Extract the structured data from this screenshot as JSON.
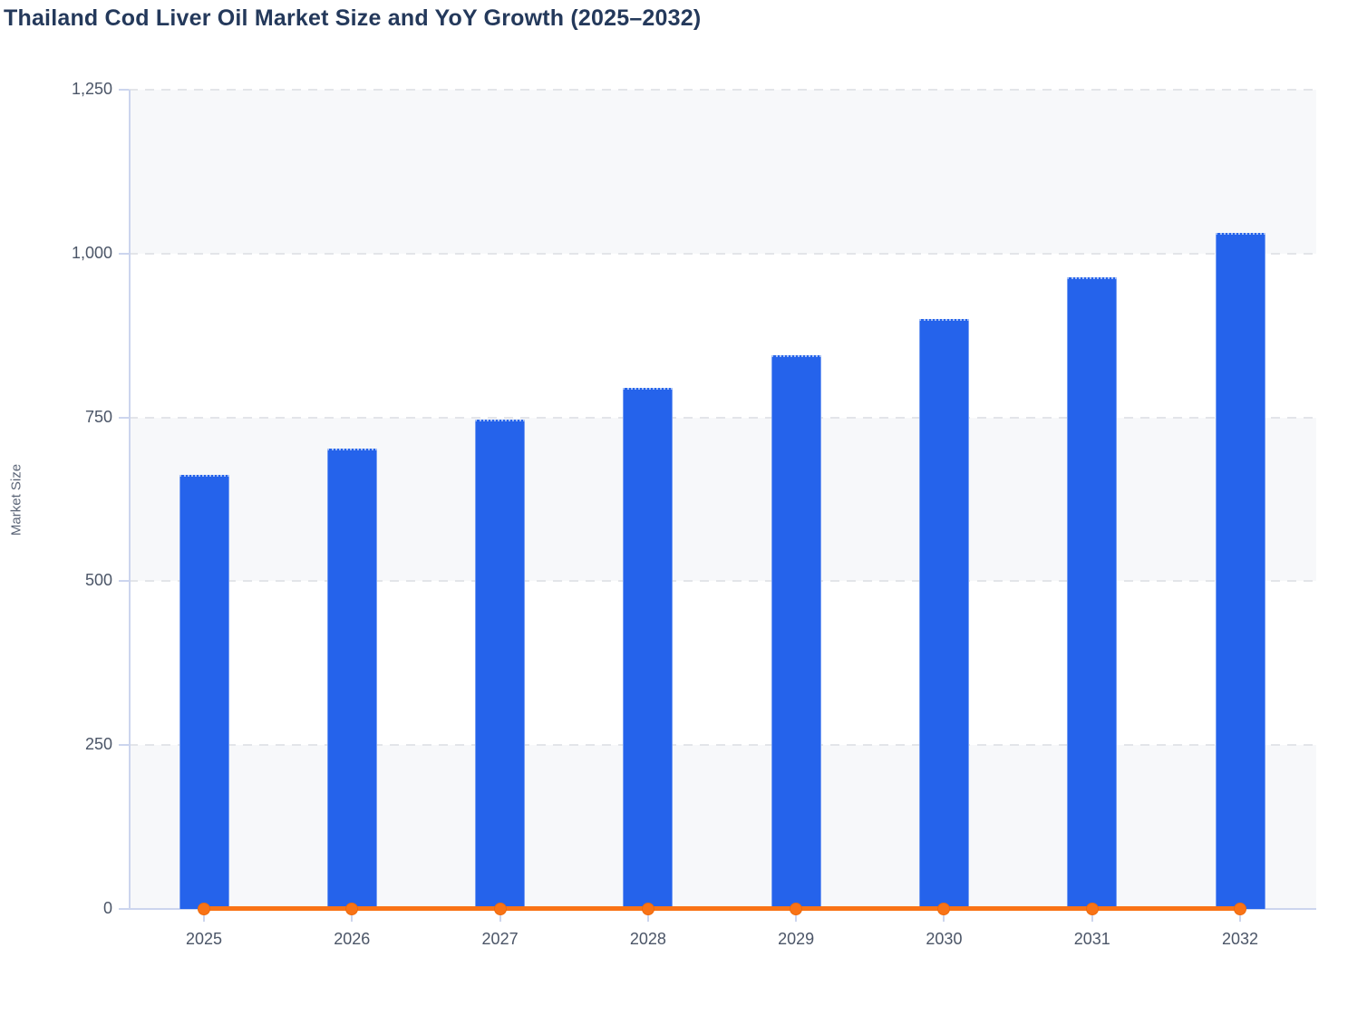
{
  "page": {
    "title": "Thailand Cod Liver Oil Market Size and YoY Growth (2025–2032)"
  },
  "chart_data": {
    "type": "bar",
    "title": "Thailand Cod Liver Oil Market Size and YoY Growth (2025–2032)",
    "categories": [
      "2025",
      "2026",
      "2027",
      "2028",
      "2029",
      "2030",
      "2031",
      "2032"
    ],
    "series": [
      {
        "name": "Market Size",
        "type": "bar",
        "color": "#2563eb",
        "values": [
          662,
          702,
          746,
          795,
          845,
          900,
          964,
          1032
        ]
      },
      {
        "name": "YoY Growth",
        "type": "line",
        "color": "#f97316",
        "values": [
          0.062,
          0.06,
          0.063,
          0.066,
          0.063,
          0.065,
          0.071,
          0.07
        ],
        "note": "plotted on the left axis; renders as a flat line with markers at ~0"
      }
    ],
    "xlabel": "",
    "ylabel": "Market Size",
    "ylim": [
      0,
      1250
    ],
    "yticks": [
      0,
      250,
      500,
      750,
      1000,
      1250
    ],
    "ytick_labels": [
      "0",
      "250",
      "500",
      "750",
      "1,000",
      "1,250"
    ],
    "grid": "horizontal dashed gridlines",
    "plot_row_bands": "alternating #f7f8fa and #ffffff between gridlines",
    "legend": "none"
  },
  "colors": {
    "title_text": "#24395b",
    "axis_text": "#4b5567",
    "axis_title_text": "#5b6577",
    "axis_line": "#ccd5ee",
    "gridline": "#e3e5e9",
    "band_fill": "#f7f8fa",
    "bar_fill": "#2563eb",
    "bar_edge": "#a6c0f5",
    "line_color": "#f97316",
    "background": "#ffffff"
  }
}
